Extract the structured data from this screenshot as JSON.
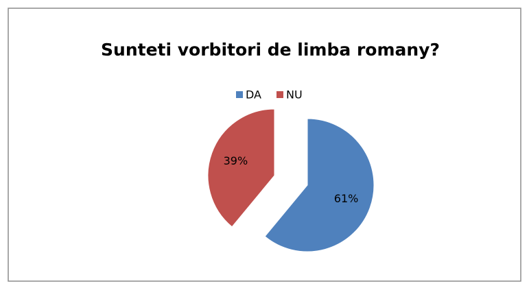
{
  "chart_data": {
    "type": "pie",
    "title": "Sunteti vorbitori de limba romany?",
    "categories": [
      "DA",
      "NU"
    ],
    "values": [
      61,
      39
    ],
    "value_labels": [
      "61%",
      "39%"
    ],
    "colors": [
      "#4f81bd",
      "#c0504d"
    ],
    "legend": "top"
  }
}
